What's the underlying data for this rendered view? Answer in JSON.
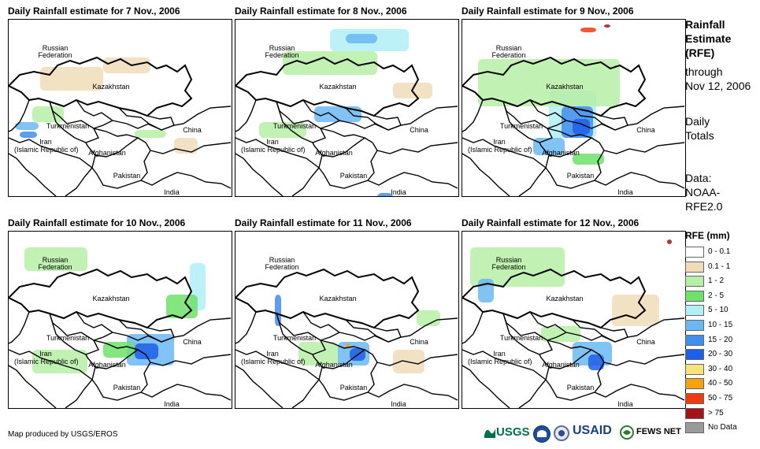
{
  "panels": [
    {
      "title": "Daily Rainfall estimate for 7 Nov., 2006"
    },
    {
      "title": "Daily Rainfall estimate for 8 Nov., 2006"
    },
    {
      "title": "Daily Rainfall estimate for 9 Nov., 2006"
    },
    {
      "title": "Daily Rainfall estimate for 10 Nov., 2006"
    },
    {
      "title": "Daily Rainfall estimate for 11 Nov., 2006"
    },
    {
      "title": "Daily Rainfall estimate for 12 Nov., 2006"
    }
  ],
  "map_labels": {
    "russia_1": "Russian",
    "russia_2": "Federation",
    "kazakhstan": "Kazakhstan",
    "turkmenistan": "Turkmenistan",
    "iran_1": "Iran",
    "iran_2": "(Islamic Republic of)",
    "afghanistan": "Afghanistan",
    "pakistan": "Pakistan",
    "china": "China",
    "india": "India"
  },
  "side_info": {
    "title_1": "Rainfall",
    "title_2": "Estimate",
    "title_3": "(RFE)",
    "through": "through",
    "date": "Nov 12, 2006",
    "totals_1": "Daily",
    "totals_2": "Totals",
    "data_1": "Data:",
    "data_2": "NOAA-",
    "data_3": "RFE2.0"
  },
  "legend": {
    "title": "RFE (mm)",
    "items": [
      {
        "label": "0 - 0.1",
        "color": "#ffffff"
      },
      {
        "label": "0.1 - 1",
        "color": "#f0dcb8"
      },
      {
        "label": "1 - 2",
        "color": "#b6efa6"
      },
      {
        "label": "2 - 5",
        "color": "#6de26a"
      },
      {
        "label": "5 - 10",
        "color": "#b2eef7"
      },
      {
        "label": "10 - 15",
        "color": "#6ab9f2"
      },
      {
        "label": "15 - 20",
        "color": "#3f8ef0"
      },
      {
        "label": "20 - 30",
        "color": "#1d5fe8"
      },
      {
        "label": "30 - 40",
        "color": "#f8e37a"
      },
      {
        "label": "40 - 50",
        "color": "#f5a20c"
      },
      {
        "label": "50 - 75",
        "color": "#f03a10"
      },
      {
        "label": "> 75",
        "color": "#a3141a"
      },
      {
        "label": "No Data",
        "color": "#9a9a9a"
      }
    ]
  },
  "credit": "Map produced by USGS/EROS",
  "logos": {
    "usgs": "USGS",
    "usaid": "USAID",
    "fews": "FEWS NET"
  }
}
